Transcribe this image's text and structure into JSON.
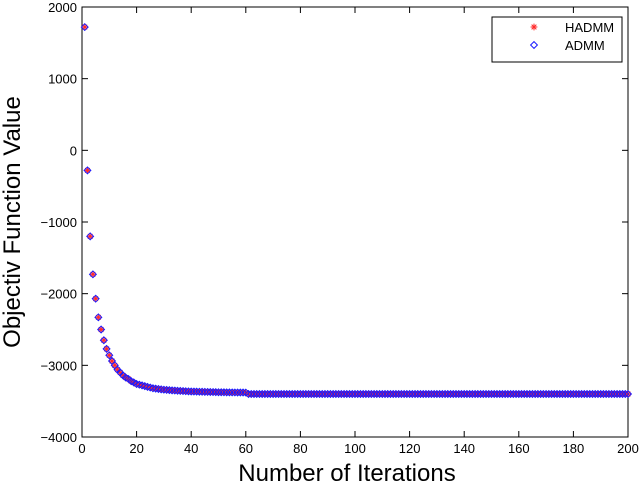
{
  "chart_data": {
    "type": "scatter",
    "title": "",
    "xlabel": "Number of Iterations",
    "ylabel": "Objectiv Function Value",
    "xlim": [
      0,
      200
    ],
    "ylim": [
      -4000,
      2000
    ],
    "xticks": [
      0,
      20,
      40,
      60,
      80,
      100,
      120,
      140,
      160,
      180,
      200
    ],
    "yticks": [
      -4000,
      -3000,
      -2000,
      -1000,
      0,
      1000,
      2000
    ],
    "grid": false,
    "legend_position": "top-right",
    "series": [
      {
        "name": "HADMM",
        "marker": "asterisk",
        "color": "#ff2a2a",
        "x": [
          1,
          2,
          3,
          4,
          5,
          6,
          7,
          8,
          9,
          10,
          11,
          12,
          13,
          14,
          15,
          16,
          17,
          18,
          19,
          20,
          22,
          24,
          26,
          28,
          30,
          35,
          40,
          45,
          50,
          55,
          60,
          61,
          200
        ],
        "y": [
          1720,
          -280,
          -1200,
          -1730,
          -2070,
          -2330,
          -2500,
          -2650,
          -2770,
          -2860,
          -2940,
          -3000,
          -3060,
          -3100,
          -3140,
          -3170,
          -3190,
          -3220,
          -3240,
          -3260,
          -3280,
          -3300,
          -3320,
          -3330,
          -3340,
          -3355,
          -3365,
          -3370,
          -3375,
          -3378,
          -3380,
          -3400,
          -3400
        ]
      },
      {
        "name": "ADMM",
        "marker": "diamond",
        "color": "#1a1aff",
        "x": [
          1,
          2,
          3,
          4,
          5,
          6,
          7,
          8,
          9,
          10,
          11,
          12,
          13,
          14,
          15,
          16,
          17,
          18,
          19,
          20,
          22,
          24,
          26,
          28,
          30,
          35,
          40,
          45,
          50,
          55,
          60,
          61,
          200
        ],
        "y": [
          1720,
          -280,
          -1200,
          -1730,
          -2070,
          -2330,
          -2500,
          -2650,
          -2770,
          -2860,
          -2940,
          -3000,
          -3060,
          -3100,
          -3140,
          -3170,
          -3190,
          -3220,
          -3240,
          -3260,
          -3280,
          -3300,
          -3320,
          -3330,
          -3340,
          -3355,
          -3365,
          -3370,
          -3375,
          -3378,
          -3380,
          -3400,
          -3400
        ]
      }
    ]
  }
}
